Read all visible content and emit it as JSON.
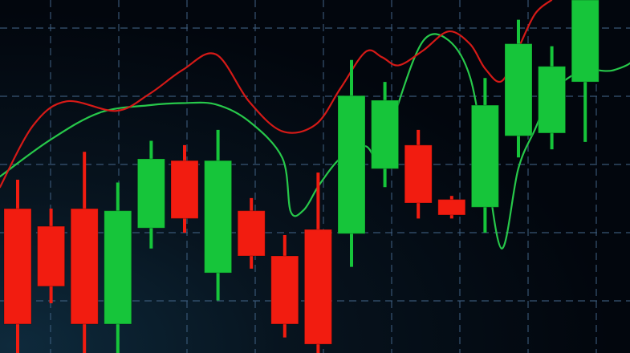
{
  "chart_data": {
    "type": "candlestick",
    "grid": true,
    "grid_style": "dashed",
    "axes_visible": false,
    "legend": "none",
    "colors": {
      "background_center": "#0e2a3c",
      "background_edge": "#02060d",
      "grid": "#3f5f80",
      "bullish": "#16c53a",
      "bearish": "#f21c10",
      "line_green": "#27c84a",
      "line_red": "#d51a17"
    },
    "ylim": [
      0,
      100
    ],
    "candles": [
      {
        "open": 40.9,
        "close": 8.2,
        "high": 49.1,
        "low": 0.0
      },
      {
        "open": 35.9,
        "close": 18.9,
        "high": 40.9,
        "low": 14.1
      },
      {
        "open": 40.9,
        "close": 8.2,
        "high": 57.0,
        "low": 0.0
      },
      {
        "open": 8.2,
        "close": 40.3,
        "high": 48.3,
        "low": 0.0
      },
      {
        "open": 35.4,
        "close": 55.0,
        "high": 60.1,
        "low": 29.6
      },
      {
        "open": 54.5,
        "close": 38.1,
        "high": 58.9,
        "low": 34.1
      },
      {
        "open": 22.7,
        "close": 54.5,
        "high": 63.2,
        "low": 14.9
      },
      {
        "open": 40.3,
        "close": 27.5,
        "high": 43.9,
        "low": 23.9
      },
      {
        "open": 27.5,
        "close": 8.2,
        "high": 33.4,
        "low": 4.4
      },
      {
        "open": 35.0,
        "close": 2.5,
        "high": 51.1,
        "low": 0.0
      },
      {
        "open": 33.8,
        "close": 72.9,
        "high": 83.0,
        "low": 24.4
      },
      {
        "open": 52.2,
        "close": 71.6,
        "high": 76.8,
        "low": 47.0
      },
      {
        "open": 58.9,
        "close": 42.5,
        "high": 63.2,
        "low": 38.1
      },
      {
        "open": 43.5,
        "close": 39.1,
        "high": 44.5,
        "low": 38.1
      },
      {
        "open": 41.3,
        "close": 70.2,
        "high": 77.9,
        "low": 34.1
      },
      {
        "open": 61.5,
        "close": 87.6,
        "high": 94.4,
        "low": 55.4
      },
      {
        "open": 62.3,
        "close": 81.2,
        "high": 86.9,
        "low": 57.7
      },
      {
        "open": 76.8,
        "close": 100.0,
        "high": 100.0,
        "low": 59.8
      }
    ],
    "series": [
      {
        "style": "green-line",
        "values": [
          [
            0,
            50.0
          ],
          [
            3,
            60.3
          ],
          [
            6,
            68.1
          ],
          [
            9,
            70.2
          ],
          [
            11,
            70.8
          ],
          [
            13,
            70.4
          ],
          [
            15,
            65.6
          ],
          [
            17,
            55.2
          ],
          [
            17.5,
            40.0
          ],
          [
            18.3,
            40.6
          ],
          [
            19.2,
            47.5
          ],
          [
            20.5,
            55.2
          ],
          [
            22,
            58.6
          ],
          [
            23,
            53.5
          ],
          [
            24,
            71.0
          ],
          [
            25.5,
            88.6
          ],
          [
            27,
            88.6
          ],
          [
            28.3,
            78.1
          ],
          [
            29.2,
            55.0
          ],
          [
            30.2,
            29.6
          ],
          [
            31.2,
            52.2
          ],
          [
            32.2,
            63.3
          ],
          [
            33.2,
            73.5
          ],
          [
            34.5,
            78.8
          ],
          [
            35.5,
            80.2
          ],
          [
            37,
            80.2
          ],
          [
            38.5,
            85.0
          ],
          [
            39.5,
            100.0
          ]
        ]
      },
      {
        "style": "red-line",
        "values": [
          [
            0,
            47.0
          ],
          [
            2,
            64.5
          ],
          [
            4,
            71.3
          ],
          [
            7,
            68.6
          ],
          [
            9,
            73.4
          ],
          [
            11,
            80.2
          ],
          [
            13,
            84.6
          ],
          [
            15,
            71.2
          ],
          [
            17,
            62.8
          ],
          [
            19,
            64.7
          ],
          [
            20.5,
            75.0
          ],
          [
            22,
            85.3
          ],
          [
            23,
            83.8
          ],
          [
            24,
            81.5
          ],
          [
            25.5,
            85.8
          ],
          [
            27,
            91.1
          ],
          [
            28.3,
            87.5
          ],
          [
            29.2,
            80.6
          ],
          [
            30.2,
            77.0
          ],
          [
            31.2,
            86.3
          ],
          [
            32.2,
            96.0
          ],
          [
            33.2,
            100.0
          ]
        ]
      }
    ]
  }
}
